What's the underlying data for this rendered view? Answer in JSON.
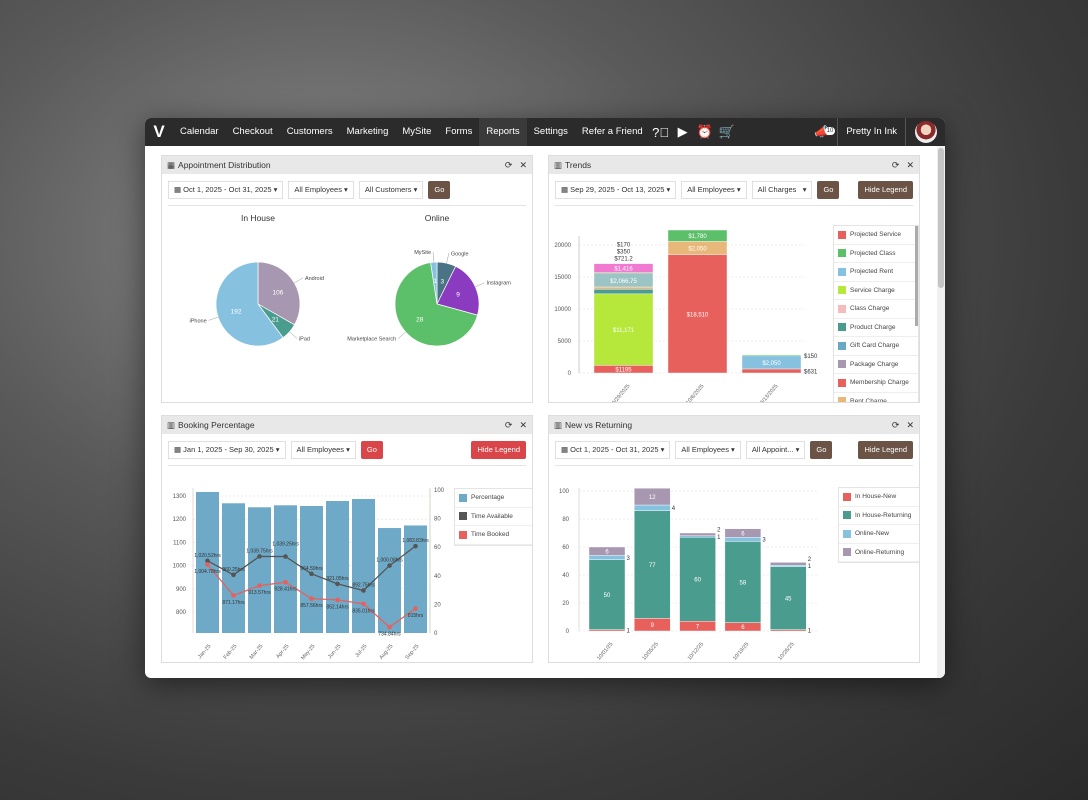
{
  "nav": {
    "items": [
      "Calendar",
      "Checkout",
      "Customers",
      "Marketing",
      "MySite",
      "Forms",
      "Reports",
      "Settings",
      "Refer a Friend"
    ],
    "active": "Reports",
    "icons": [
      "help-icon",
      "play-icon",
      "alarm-icon",
      "cart-icon"
    ],
    "notifications": "10",
    "account": "Pretty In Ink"
  },
  "appointment_distribution": {
    "title": "Appointment Distribution",
    "date_range": "Oct 1, 2025 - Oct 31, 2025",
    "employees": "All Employees",
    "customers": "All Customers",
    "go": "Go"
  },
  "trends": {
    "title": "Trends",
    "date_range": "Sep 29, 2025 - Oct 13, 2025",
    "employees": "All Employees",
    "charges": "All Charges",
    "go": "Go",
    "hide_legend": "Hide Legend"
  },
  "booking": {
    "title": "Booking Percentage",
    "date_range": "Jan 1, 2025 - Sep 30, 2025",
    "employees": "All Employees",
    "go": "Go",
    "hide_legend": "Hide Legend"
  },
  "nvr": {
    "title": "New vs Returning",
    "date_range": "Oct 1, 2025 - Oct 31, 2025",
    "employees": "All Employees",
    "appointments": "All Appoint...",
    "go": "Go",
    "hide_legend": "Hide Legend"
  },
  "chart_data": [
    {
      "type": "pie",
      "title": "In House",
      "slices": [
        {
          "label": "Android",
          "value": 106,
          "color": "#a897b0"
        },
        {
          "label": "iPad",
          "value": 21,
          "color": "#4a9c8e"
        },
        {
          "label": "iPhone",
          "value": 192,
          "color": "#86c2e0"
        }
      ]
    },
    {
      "type": "pie",
      "title": "Online",
      "slices": [
        {
          "label": "Google",
          "value": 3,
          "color": "#4a7486"
        },
        {
          "label": "Instagram",
          "value": 9,
          "color": "#8b3bbf"
        },
        {
          "label": "Marketplace Search",
          "value": 28,
          "color": "#5cbf6a"
        },
        {
          "label": "MySite",
          "value": 1,
          "color": "#86c2e0"
        }
      ]
    },
    {
      "type": "bar",
      "stacked": true,
      "categories": [
        "9/29/2025",
        "10/6/2025",
        "10/13/2025"
      ],
      "ylim": [
        0,
        22500
      ],
      "yticks": [
        0,
        5000,
        10000,
        15000,
        20000
      ],
      "legend_position": "right",
      "legend": [
        {
          "name": "Projected Service",
          "color": "#e8605c"
        },
        {
          "name": "Projected Class",
          "color": "#5cbf6a"
        },
        {
          "name": "Projected Rent",
          "color": "#86c2e0"
        },
        {
          "name": "Service Charge",
          "color": "#b5e83a"
        },
        {
          "name": "Class Charge",
          "color": "#f4bcbc"
        },
        {
          "name": "Product Charge",
          "color": "#4a9c8e"
        },
        {
          "name": "Gift Card Charge",
          "color": "#6aa8c8"
        },
        {
          "name": "Package Charge",
          "color": "#a897b0"
        },
        {
          "name": "Membership Charge",
          "color": "#e8605c"
        },
        {
          "name": "Rent Charge",
          "color": "#e8b87a"
        }
      ],
      "stacks": [
        [
          {
            "value": 1195,
            "label": "$1195",
            "color": "#e8605c"
          },
          {
            "value": 11171,
            "label": "$11,171",
            "color": "#b5e83a"
          },
          {
            "value": 721.2,
            "label": "$721.2",
            "color": "#4a9c8e"
          },
          {
            "value": 350,
            "label": "$350",
            "color": "#e8b87a"
          },
          {
            "value": 2066.75,
            "label": "$2,066.75",
            "color": "#9cc4c4"
          },
          {
            "value": 170,
            "label": "$170",
            "color": "#5cbf6a"
          },
          {
            "value": 1416,
            "label": "$1,416",
            "color": "#f07ad0"
          }
        ],
        [
          {
            "value": 18510,
            "label": "$18,510",
            "color": "#e8605c"
          },
          {
            "value": 2050,
            "label": "$2,050",
            "color": "#e8b87a"
          },
          {
            "value": 1780,
            "label": "$1,780",
            "color": "#5cbf6a"
          }
        ],
        [
          {
            "value": 631,
            "label": "$631",
            "color": "#e8605c"
          },
          {
            "value": 2050,
            "label": "$2,050",
            "color": "#86c2e0"
          },
          {
            "value": 150,
            "label": "$150",
            "color": "#5cbf6a"
          }
        ]
      ]
    },
    {
      "type": "bar+line",
      "categories": [
        "Jan-25",
        "Feb-25",
        "Mar-25",
        "Apr-25",
        "May-25",
        "Jun-25",
        "Jul-25",
        "Aug-25",
        "Sep-25"
      ],
      "y_left_ticks": [
        800,
        900,
        1000,
        1100,
        1200,
        1300
      ],
      "y_right_ticks": [
        0,
        20,
        40,
        60,
        80,
        100
      ],
      "legend_position": "right",
      "series": [
        {
          "name": "Percentage",
          "axis": "right",
          "type": "bar",
          "color": "#6ea9c7",
          "values": [
            98.6,
            90.7,
            87.9,
            89.3,
            88.8,
            92.3,
            93.7,
            73.4,
            75.2
          ]
        },
        {
          "name": "Time Available",
          "axis": "left",
          "type": "line",
          "color": "#555555",
          "values": [
            1020.52,
            960.25,
            1039.75,
            1039.25,
            964.59,
            921.05,
            892.75,
            1000.08,
            1083.83
          ],
          "labels": [
            "1,020.52hrs",
            "960.25hrs",
            "1,039.75hrs",
            "1,039.25hrs",
            "964.59hrs",
            "921.05hrs",
            "892.75hrs",
            "1,000.08hrs",
            "1,083.83hrs"
          ]
        },
        {
          "name": "Time Booked",
          "axis": "left",
          "type": "line",
          "color": "#e8605c",
          "values": [
            1004.78,
            871.17,
            913.57,
            928.41,
            857.56,
            852.14,
            835.01,
            734.84,
            815
          ],
          "labels": [
            "1,004.78hrs",
            "871.17hrs",
            "913.57hrs",
            "928.41hrs",
            "857.56hrs",
            "852.14hrs",
            "835.01hrs",
            "734.84hrs",
            "815hrs"
          ]
        }
      ]
    },
    {
      "type": "bar",
      "stacked": true,
      "categories": [
        "10/01/25",
        "10/05/25",
        "10/12/25",
        "10/19/25",
        "10/26/25"
      ],
      "ylim": [
        0,
        100
      ],
      "yticks": [
        0,
        20,
        40,
        60,
        80,
        100
      ],
      "legend_position": "right",
      "series": [
        {
          "name": "In House-New",
          "color": "#e8605c",
          "values": [
            1,
            9,
            7,
            6,
            1
          ]
        },
        {
          "name": "In House-Returning",
          "color": "#4a9c8e",
          "values": [
            50,
            77,
            60,
            58,
            45
          ]
        },
        {
          "name": "Online-New",
          "color": "#86c2e0",
          "values": [
            3,
            4,
            1,
            3,
            1
          ]
        },
        {
          "name": "Online-Returning",
          "color": "#a897b0",
          "values": [
            6,
            12,
            2,
            6,
            2
          ]
        }
      ]
    }
  ]
}
